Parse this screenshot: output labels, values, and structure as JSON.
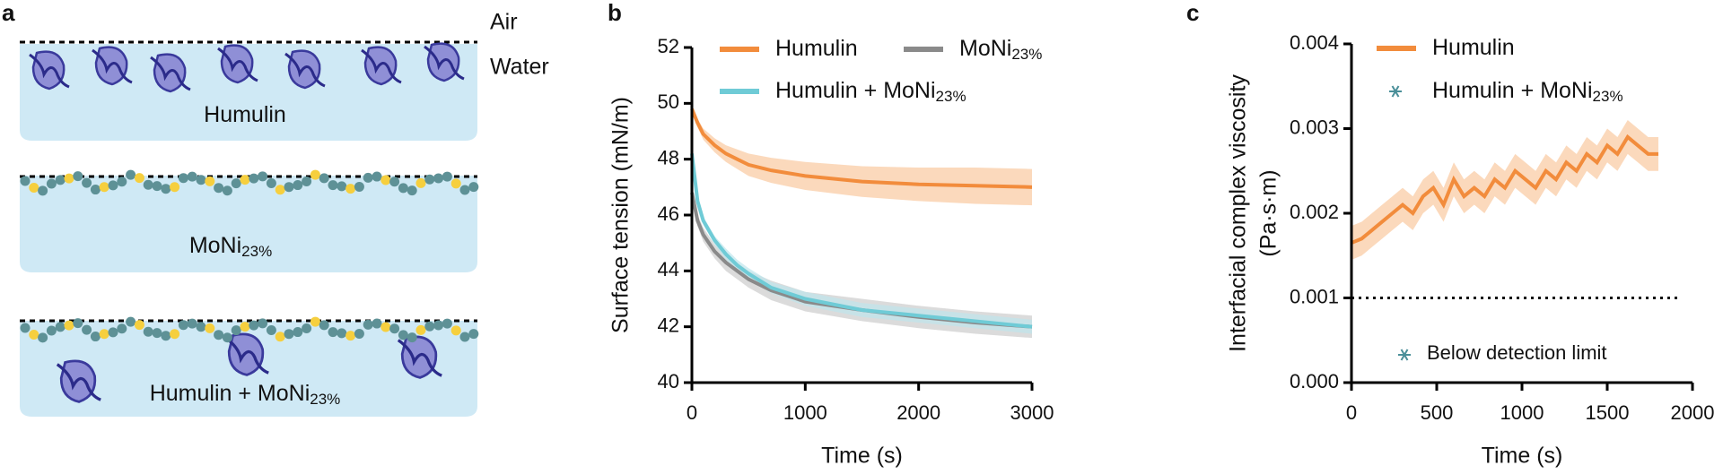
{
  "diagram": {
    "panel": "a",
    "air": "Air",
    "water": "Water",
    "labels": [
      {
        "main": "Humulin",
        "sub": ""
      },
      {
        "main": "MoNi",
        "sub": "23%"
      },
      {
        "main": "Humulin + MoNi",
        "sub": "23%"
      }
    ]
  },
  "chart_data": [
    {
      "type": "line",
      "panel": "b",
      "xlabel": "Time (s)",
      "ylabel": "Surface tension (mN/m)",
      "x": [
        0,
        50,
        100,
        200,
        300,
        400,
        500,
        700,
        1000,
        1500,
        2000,
        2500,
        3000
      ],
      "xlim": [
        0,
        3000
      ],
      "xticks": [
        0,
        1000,
        2000,
        3000
      ],
      "ylim": [
        40,
        52
      ],
      "yticks": [
        40,
        42,
        44,
        46,
        48,
        50,
        52
      ],
      "series": [
        {
          "name": "Humulin",
          "name_sub": "",
          "color": "#f28c3c",
          "band_color": "#f9c9a0",
          "values": [
            49.8,
            49.3,
            48.9,
            48.5,
            48.2,
            48.0,
            47.8,
            47.6,
            47.4,
            47.2,
            47.1,
            47.05,
            47.0
          ],
          "spread": [
            0.1,
            0.15,
            0.2,
            0.25,
            0.3,
            0.35,
            0.4,
            0.45,
            0.5,
            0.55,
            0.6,
            0.65,
            0.65
          ]
        },
        {
          "name": "MoNi",
          "name_sub": "23%",
          "color": "#8a8a8a",
          "band_color": "#cccccc",
          "values": [
            46.8,
            45.8,
            45.3,
            44.7,
            44.3,
            44.0,
            43.7,
            43.3,
            42.9,
            42.6,
            42.35,
            42.15,
            42.0
          ],
          "spread": [
            0.2,
            0.2,
            0.25,
            0.25,
            0.3,
            0.3,
            0.3,
            0.35,
            0.35,
            0.4,
            0.4,
            0.4,
            0.4
          ]
        },
        {
          "name": "Humulin + MoNi",
          "name_sub": "23%",
          "color": "#6fcbd6",
          "band_color": "#bfe6ec",
          "values": [
            48.2,
            46.5,
            45.8,
            45.1,
            44.6,
            44.2,
            43.9,
            43.4,
            43.0,
            42.6,
            42.4,
            42.2,
            42.0
          ],
          "spread": [
            0.1,
            0.1,
            0.15,
            0.15,
            0.2,
            0.2,
            0.2,
            0.2,
            0.25,
            0.25,
            0.25,
            0.25,
            0.25
          ]
        }
      ]
    },
    {
      "type": "line",
      "panel": "c",
      "xlabel": "Time (s)",
      "ylabel": [
        "Interfacial complex viscosity",
        "(Pa·s·m)"
      ],
      "x": [
        0,
        60,
        120,
        180,
        240,
        300,
        360,
        420,
        480,
        540,
        600,
        660,
        720,
        780,
        840,
        900,
        960,
        1020,
        1080,
        1140,
        1200,
        1260,
        1320,
        1380,
        1440,
        1500,
        1560,
        1620,
        1680,
        1740,
        1800
      ],
      "xlim": [
        0,
        2000
      ],
      "xticks": [
        0,
        500,
        1000,
        1500,
        2000
      ],
      "ylim": [
        0,
        0.004
      ],
      "yticks": [
        {
          "value": 0,
          "label": "0.000"
        },
        {
          "value": 0.001,
          "label": "0.001"
        },
        {
          "value": 0.002,
          "label": "0.002"
        },
        {
          "value": 0.003,
          "label": "0.003"
        },
        {
          "value": 0.004,
          "label": "0.004"
        }
      ],
      "series": [
        {
          "name": "Humulin",
          "name_sub": "",
          "color": "#f28c3c",
          "band_color": "#f9c9a0",
          "values": [
            0.00165,
            0.0017,
            0.0018,
            0.0019,
            0.002,
            0.0021,
            0.002,
            0.0022,
            0.0023,
            0.0021,
            0.0024,
            0.0022,
            0.0023,
            0.0022,
            0.0024,
            0.0023,
            0.0025,
            0.0024,
            0.0023,
            0.0025,
            0.0024,
            0.0026,
            0.0025,
            0.0027,
            0.0026,
            0.0028,
            0.0027,
            0.0029,
            0.0028,
            0.0027,
            0.0027
          ],
          "spread": [
            0.0002,
            0.0002,
            0.0002,
            0.0002,
            0.0002,
            0.0002,
            0.0002,
            0.0002,
            0.0002,
            0.0002,
            0.0002,
            0.0002,
            0.0002,
            0.0002,
            0.0002,
            0.0002,
            0.0002,
            0.0002,
            0.0002,
            0.0002,
            0.0002,
            0.0002,
            0.0002,
            0.0002,
            0.0002,
            0.0002,
            0.0002,
            0.0002,
            0.0002,
            0.0002,
            0.0002
          ]
        }
      ],
      "marker_legend": {
        "name": "Humulin + MoNi",
        "name_sub": "23%",
        "color": "#4a8f99"
      },
      "detection_limit": 0.001,
      "annotation": "Below detection limit"
    }
  ]
}
